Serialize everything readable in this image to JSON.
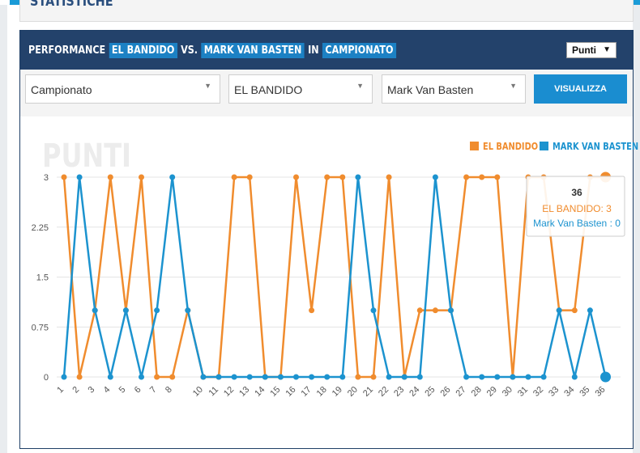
{
  "page": {
    "section_title": "STATISTICHE"
  },
  "panel": {
    "title_parts": {
      "w1": "PERFORMANCE",
      "p1": "EL BANDIDO",
      "w2": "VS.",
      "p2": "MARK VAN BASTEN",
      "w3": "IN",
      "p3": "CAMPIONATO"
    },
    "unit_select": "Punti"
  },
  "filters": {
    "competition": "Campionato",
    "player1": "EL BANDIDO",
    "player2": "Mark Van Basten",
    "button_label": "VISUALIZZA"
  },
  "colors": {
    "orange": "#f08c2e",
    "blue": "#1c93cf",
    "header": "#23426b",
    "accent": "#1c81c4"
  },
  "chart_data": {
    "type": "line",
    "watermark": "PUNTI",
    "legend_position": "top-right",
    "x": [
      1,
      2,
      3,
      4,
      5,
      6,
      7,
      8,
      9,
      10,
      11,
      12,
      13,
      14,
      15,
      16,
      17,
      18,
      19,
      20,
      21,
      22,
      23,
      24,
      25,
      26,
      27,
      28,
      29,
      30,
      31,
      32,
      33,
      34,
      35,
      36
    ],
    "x_tick_labels": [
      "1",
      "2",
      "3",
      "4",
      "5",
      "6",
      "7",
      "8",
      "",
      "10",
      "11",
      "12",
      "13",
      "14",
      "15",
      "16",
      "17",
      "18",
      "19",
      "20",
      "21",
      "22",
      "23",
      "24",
      "25",
      "26",
      "27",
      "28",
      "29",
      "30",
      "31",
      "32",
      "33",
      "34",
      "35",
      "36"
    ],
    "y_ticks": [
      "3",
      "2.25",
      "1.5",
      "0.75",
      "0"
    ],
    "ylim": [
      0,
      3
    ],
    "grid": true,
    "series": [
      {
        "name": "EL BANDIDO",
        "color": "#f08c2e",
        "values": [
          3,
          0,
          1,
          3,
          1,
          3,
          0,
          0,
          1,
          0,
          0,
          3,
          3,
          0,
          0,
          3,
          1,
          3,
          3,
          0,
          0,
          3,
          0,
          1,
          1,
          1,
          3,
          3,
          3,
          0,
          3,
          3,
          1,
          1,
          3,
          3
        ]
      },
      {
        "name": "MARK VAN BASTEN",
        "color": "#1c93cf",
        "values": [
          0,
          3,
          1,
          0,
          1,
          0,
          1,
          3,
          1,
          0,
          0,
          0,
          0,
          0,
          0,
          0,
          0,
          0,
          0,
          3,
          1,
          0,
          0,
          0,
          3,
          1,
          0,
          0,
          0,
          0,
          0,
          0,
          1,
          0,
          1,
          0
        ]
      }
    ],
    "tooltip": {
      "x": "36",
      "line1": "EL BANDIDO: 3",
      "line2": "Mark Van Basten : 0",
      "point_index": 35
    }
  }
}
